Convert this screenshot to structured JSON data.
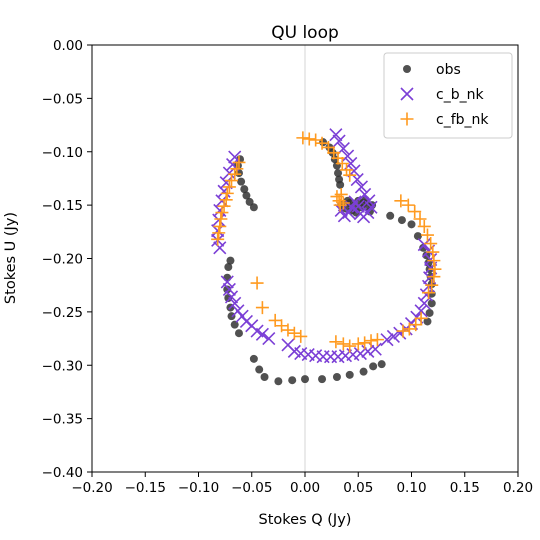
{
  "chart_data": {
    "type": "scatter",
    "title": "QU loop",
    "xlabel": "Stokes Q (Jy)",
    "ylabel": "Stokes U (Jy)",
    "xlim": [
      -0.2,
      0.2
    ],
    "ylim": [
      -0.4,
      0.0
    ],
    "xticks": [
      -0.2,
      -0.15,
      -0.1,
      -0.05,
      0.0,
      0.05,
      0.1,
      0.15,
      0.2
    ],
    "yticks": [
      0.0,
      -0.05,
      -0.1,
      -0.15,
      -0.2,
      -0.25,
      -0.3,
      -0.35,
      -0.4
    ],
    "xtick_labels": [
      "−0.20",
      "−0.15",
      "−0.10",
      "−0.05",
      "0.00",
      "0.05",
      "0.10",
      "0.15",
      "0.20"
    ],
    "ytick_labels": [
      "0.00",
      "−0.05",
      "−0.10",
      "−0.15",
      "−0.20",
      "−0.25",
      "−0.30",
      "−0.35",
      "−0.40"
    ],
    "zero_line": "vertical at x = 0",
    "legend_position": "top-right",
    "series": [
      {
        "name": "obs",
        "marker": "circle",
        "color": "#333333",
        "points": [
          [
            0.072,
            -0.299
          ],
          [
            0.064,
            -0.301
          ],
          [
            0.055,
            -0.306
          ],
          [
            0.042,
            -0.309
          ],
          [
            0.03,
            -0.311
          ],
          [
            0.016,
            -0.313
          ],
          [
            0.0,
            -0.313
          ],
          [
            -0.012,
            -0.314
          ],
          [
            -0.025,
            -0.315
          ],
          [
            -0.038,
            -0.311
          ],
          [
            -0.043,
            -0.304
          ],
          [
            -0.048,
            -0.294
          ],
          [
            -0.062,
            -0.27
          ],
          [
            -0.066,
            -0.262
          ],
          [
            -0.069,
            -0.254
          ],
          [
            -0.07,
            -0.246
          ],
          [
            -0.072,
            -0.237
          ],
          [
            -0.073,
            -0.229
          ],
          [
            -0.073,
            -0.218
          ],
          [
            -0.072,
            -0.208
          ],
          [
            -0.07,
            -0.202
          ],
          [
            -0.048,
            -0.152
          ],
          [
            -0.052,
            -0.147
          ],
          [
            -0.055,
            -0.141
          ],
          [
            -0.057,
            -0.135
          ],
          [
            -0.06,
            -0.128
          ],
          [
            -0.062,
            -0.12
          ],
          [
            -0.063,
            -0.113
          ],
          [
            -0.061,
            -0.107
          ],
          [
            0.017,
            -0.091
          ],
          [
            0.023,
            -0.096
          ],
          [
            0.026,
            -0.101
          ],
          [
            0.028,
            -0.107
          ],
          [
            0.03,
            -0.113
          ],
          [
            0.031,
            -0.12
          ],
          [
            0.032,
            -0.126
          ],
          [
            0.033,
            -0.131
          ],
          [
            0.034,
            -0.15
          ],
          [
            0.038,
            -0.153
          ],
          [
            0.042,
            -0.148
          ],
          [
            0.046,
            -0.151
          ],
          [
            0.05,
            -0.146
          ],
          [
            0.052,
            -0.152
          ],
          [
            0.055,
            -0.148
          ],
          [
            0.057,
            -0.145
          ],
          [
            0.059,
            -0.151
          ],
          [
            0.061,
            -0.156
          ],
          [
            0.063,
            -0.15
          ],
          [
            0.048,
            -0.157
          ],
          [
            0.044,
            -0.155
          ],
          [
            0.04,
            -0.146
          ],
          [
            0.08,
            -0.16
          ],
          [
            0.091,
            -0.164
          ],
          [
            0.1,
            -0.168
          ],
          [
            0.106,
            -0.179
          ],
          [
            0.111,
            -0.19
          ],
          [
            0.114,
            -0.197
          ],
          [
            0.116,
            -0.204
          ],
          [
            0.117,
            -0.21
          ],
          [
            0.118,
            -0.217
          ],
          [
            0.119,
            -0.224
          ],
          [
            0.119,
            -0.233
          ],
          [
            0.119,
            -0.242
          ],
          [
            0.117,
            -0.251
          ],
          [
            0.115,
            -0.259
          ]
        ]
      },
      {
        "name": "c_b_nk",
        "marker": "x",
        "color": "#7b3fd6",
        "points": [
          [
            0.029,
            -0.084
          ],
          [
            0.032,
            -0.09
          ],
          [
            0.036,
            -0.097
          ],
          [
            0.04,
            -0.104
          ],
          [
            0.043,
            -0.111
          ],
          [
            0.046,
            -0.118
          ],
          [
            0.049,
            -0.126
          ],
          [
            0.053,
            -0.133
          ],
          [
            0.056,
            -0.14
          ],
          [
            0.06,
            -0.146
          ],
          [
            0.062,
            -0.152
          ],
          [
            0.059,
            -0.157
          ],
          [
            0.055,
            -0.161
          ],
          [
            0.052,
            -0.158
          ],
          [
            0.05,
            -0.151
          ],
          [
            0.047,
            -0.147
          ],
          [
            0.044,
            -0.152
          ],
          [
            0.041,
            -0.157
          ],
          [
            0.037,
            -0.16
          ],
          [
            0.034,
            -0.155
          ],
          [
            -0.066,
            -0.105
          ],
          [
            -0.068,
            -0.112
          ],
          [
            -0.071,
            -0.12
          ],
          [
            -0.074,
            -0.129
          ],
          [
            -0.076,
            -0.137
          ],
          [
            -0.078,
            -0.146
          ],
          [
            -0.08,
            -0.155
          ],
          [
            -0.081,
            -0.164
          ],
          [
            -0.082,
            -0.174
          ],
          [
            -0.082,
            -0.183
          ],
          [
            -0.08,
            -0.19
          ],
          [
            -0.073,
            -0.222
          ],
          [
            -0.071,
            -0.229
          ],
          [
            -0.069,
            -0.236
          ],
          [
            -0.066,
            -0.242
          ],
          [
            -0.063,
            -0.249
          ],
          [
            -0.059,
            -0.254
          ],
          [
            -0.055,
            -0.259
          ],
          [
            -0.05,
            -0.263
          ],
          [
            -0.045,
            -0.268
          ],
          [
            -0.04,
            -0.271
          ],
          [
            -0.034,
            -0.275
          ],
          [
            -0.016,
            -0.281
          ],
          [
            -0.01,
            -0.287
          ],
          [
            -0.004,
            -0.289
          ],
          [
            0.003,
            -0.29
          ],
          [
            0.01,
            -0.291
          ],
          [
            0.017,
            -0.292
          ],
          [
            0.024,
            -0.292
          ],
          [
            0.031,
            -0.292
          ],
          [
            0.038,
            -0.291
          ],
          [
            0.045,
            -0.29
          ],
          [
            0.052,
            -0.289
          ],
          [
            0.059,
            -0.287
          ],
          [
            0.066,
            -0.285
          ],
          [
            0.077,
            -0.276
          ],
          [
            0.083,
            -0.273
          ],
          [
            0.089,
            -0.27
          ],
          [
            0.095,
            -0.266
          ],
          [
            0.1,
            -0.261
          ],
          [
            0.105,
            -0.255
          ],
          [
            0.109,
            -0.249
          ],
          [
            0.112,
            -0.242
          ],
          [
            0.114,
            -0.234
          ],
          [
            0.116,
            -0.226
          ],
          [
            0.117,
            -0.218
          ],
          [
            0.118,
            -0.209
          ],
          [
            0.118,
            -0.201
          ],
          [
            0.116,
            -0.193
          ],
          [
            0.112,
            -0.187
          ]
        ]
      },
      {
        "name": "c_fb_nk",
        "marker": "plus",
        "color": "#ff9a1f",
        "points": [
          [
            -0.002,
            -0.087
          ],
          [
            0.004,
            -0.088
          ],
          [
            0.01,
            -0.089
          ],
          [
            0.016,
            -0.092
          ],
          [
            0.022,
            -0.096
          ],
          [
            0.027,
            -0.101
          ],
          [
            0.031,
            -0.106
          ],
          [
            0.035,
            -0.111
          ],
          [
            0.039,
            -0.117
          ],
          [
            0.042,
            -0.122
          ],
          [
            0.034,
            -0.14
          ],
          [
            0.032,
            -0.146
          ],
          [
            0.036,
            -0.148
          ],
          [
            0.03,
            -0.142
          ],
          [
            0.033,
            -0.15
          ],
          [
            -0.062,
            -0.11
          ],
          [
            -0.064,
            -0.116
          ],
          [
            -0.066,
            -0.121
          ],
          [
            -0.069,
            -0.127
          ],
          [
            -0.071,
            -0.133
          ],
          [
            -0.073,
            -0.139
          ],
          [
            -0.074,
            -0.145
          ],
          [
            -0.076,
            -0.151
          ],
          [
            -0.078,
            -0.157
          ],
          [
            -0.079,
            -0.163
          ],
          [
            -0.08,
            -0.17
          ],
          [
            -0.081,
            -0.176
          ],
          [
            -0.082,
            -0.182
          ],
          [
            -0.045,
            -0.223
          ],
          [
            -0.04,
            -0.246
          ],
          [
            -0.028,
            -0.258
          ],
          [
            -0.022,
            -0.263
          ],
          [
            -0.016,
            -0.267
          ],
          [
            -0.01,
            -0.27
          ],
          [
            -0.004,
            -0.273
          ],
          [
            0.029,
            -0.278
          ],
          [
            0.036,
            -0.28
          ],
          [
            0.042,
            -0.282
          ],
          [
            0.05,
            -0.28
          ],
          [
            0.056,
            -0.279
          ],
          [
            0.062,
            -0.277
          ],
          [
            0.068,
            -0.276
          ],
          [
            0.09,
            -0.146
          ],
          [
            0.097,
            -0.15
          ],
          [
            0.103,
            -0.156
          ],
          [
            0.108,
            -0.163
          ],
          [
            0.112,
            -0.17
          ],
          [
            0.115,
            -0.178
          ],
          [
            0.118,
            -0.186
          ],
          [
            0.12,
            -0.194
          ],
          [
            0.121,
            -0.202
          ],
          [
            0.122,
            -0.21
          ],
          [
            0.121,
            -0.217
          ],
          [
            0.119,
            -0.225
          ],
          [
            0.116,
            -0.232
          ],
          [
            0.109,
            -0.256
          ],
          [
            0.104,
            -0.262
          ],
          [
            0.098,
            -0.266
          ],
          [
            0.092,
            -0.268
          ]
        ]
      }
    ]
  }
}
